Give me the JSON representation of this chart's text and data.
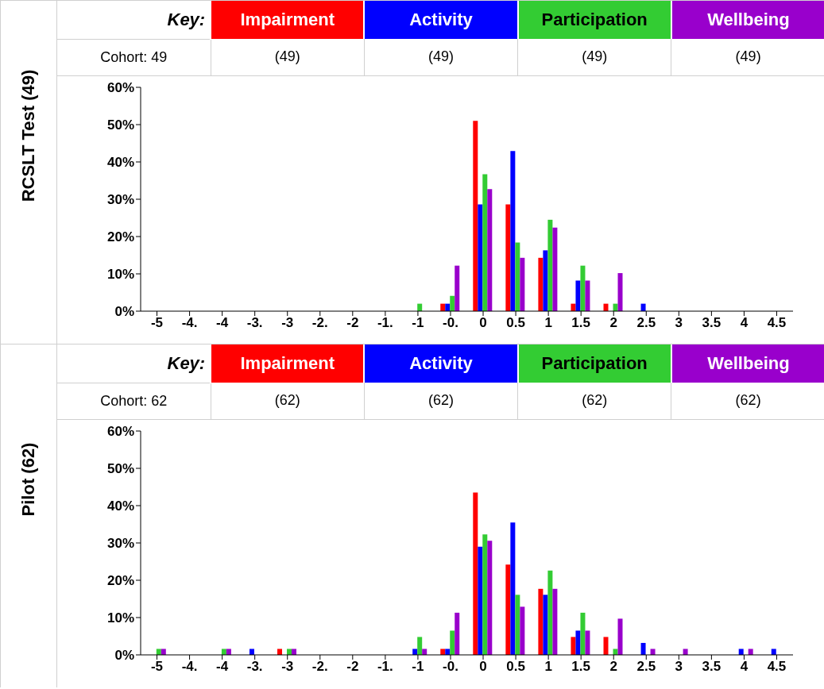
{
  "chart_data": [
    {
      "type": "bar",
      "title": "RCSLT Test (49)",
      "legend_title": "Key:",
      "legend": "top",
      "annotations": [
        "Cohort: 49",
        "(49)",
        "(49)",
        "(49)",
        "(49)"
      ],
      "categories": [
        "-5",
        "-4.",
        "-4",
        "-3.",
        "-3",
        "-2.",
        "-2",
        "-1.",
        "-1",
        "-0.",
        "0",
        "0.5",
        "1",
        "1.5",
        "2",
        "2.5",
        "3",
        "3.5",
        "4",
        "4.5"
      ],
      "series": [
        {
          "name": "Impairment",
          "color": "#ff0000",
          "values": [
            0,
            0,
            0,
            0,
            0,
            0,
            0,
            0,
            0,
            2,
            51,
            28.6,
            14.3,
            2,
            2,
            0,
            0,
            0,
            0,
            0
          ]
        },
        {
          "name": "Activity",
          "color": "#0000ff",
          "values": [
            0,
            0,
            0,
            0,
            0,
            0,
            0,
            0,
            0,
            2,
            28.6,
            42.9,
            16.3,
            8.2,
            0,
            2,
            0,
            0,
            0,
            0
          ]
        },
        {
          "name": "Participation",
          "color": "#33cc33",
          "values": [
            0,
            0,
            0,
            0,
            0,
            0,
            0,
            0,
            2,
            4.1,
            36.7,
            18.4,
            24.5,
            12.2,
            2,
            0,
            0,
            0,
            0,
            0
          ]
        },
        {
          "name": "Wellbeing",
          "color": "#9900cc",
          "values": [
            0,
            0,
            0,
            0,
            0,
            0,
            0,
            0,
            0,
            12.2,
            32.7,
            14.3,
            22.4,
            8.2,
            10.2,
            0,
            0,
            0,
            0,
            0
          ]
        }
      ],
      "ylim": [
        0,
        60
      ],
      "yticks": [
        {
          "value": 0,
          "label": "0%"
        },
        {
          "value": 10,
          "label": "10%"
        },
        {
          "value": 20,
          "label": "20%"
        },
        {
          "value": 30,
          "label": "30%"
        },
        {
          "value": 40,
          "label": "40%"
        },
        {
          "value": 50,
          "label": "50%"
        },
        {
          "value": 60,
          "label": "60%"
        }
      ],
      "grid": false
    },
    {
      "type": "bar",
      "title": "Pilot (62)",
      "legend_title": "Key:",
      "legend": "top",
      "annotations": [
        "Cohort: 62",
        "(62)",
        "(62)",
        "(62)",
        "(62)"
      ],
      "categories": [
        "-5",
        "-4.",
        "-4",
        "-3.",
        "-3",
        "-2.",
        "-2",
        "-1.",
        "-1",
        "-0.",
        "0",
        "0.5",
        "1",
        "1.5",
        "2",
        "2.5",
        "3",
        "3.5",
        "4",
        "4.5"
      ],
      "series": [
        {
          "name": "Impairment",
          "color": "#ff0000",
          "values": [
            0,
            0,
            0,
            0,
            1.6,
            0,
            0,
            0,
            0,
            1.6,
            43.5,
            24.2,
            17.7,
            4.8,
            4.8,
            0,
            0,
            0,
            0,
            0
          ]
        },
        {
          "name": "Activity",
          "color": "#0000ff",
          "values": [
            0,
            0,
            0,
            1.6,
            0,
            0,
            0,
            0,
            1.6,
            1.6,
            29,
            35.5,
            16.1,
            6.5,
            0,
            3.2,
            0,
            0,
            1.6,
            1.6
          ]
        },
        {
          "name": "Participation",
          "color": "#33cc33",
          "values": [
            1.6,
            0,
            1.6,
            0,
            1.6,
            0,
            0,
            0,
            4.8,
            6.5,
            32.3,
            16.1,
            22.6,
            11.3,
            1.6,
            0,
            0,
            0,
            0,
            0
          ]
        },
        {
          "name": "Wellbeing",
          "color": "#9900cc",
          "values": [
            1.6,
            0,
            1.6,
            0,
            1.6,
            0,
            0,
            0,
            1.6,
            11.3,
            30.6,
            12.9,
            17.7,
            6.5,
            9.7,
            1.6,
            1.6,
            0,
            1.6,
            0
          ]
        }
      ],
      "ylim": [
        0,
        60
      ],
      "yticks": [
        {
          "value": 0,
          "label": "0%"
        },
        {
          "value": 10,
          "label": "10%"
        },
        {
          "value": 20,
          "label": "20%"
        },
        {
          "value": 30,
          "label": "30%"
        },
        {
          "value": 40,
          "label": "40%"
        },
        {
          "value": 50,
          "label": "50%"
        },
        {
          "value": 60,
          "label": "60%"
        }
      ],
      "grid": false
    }
  ]
}
